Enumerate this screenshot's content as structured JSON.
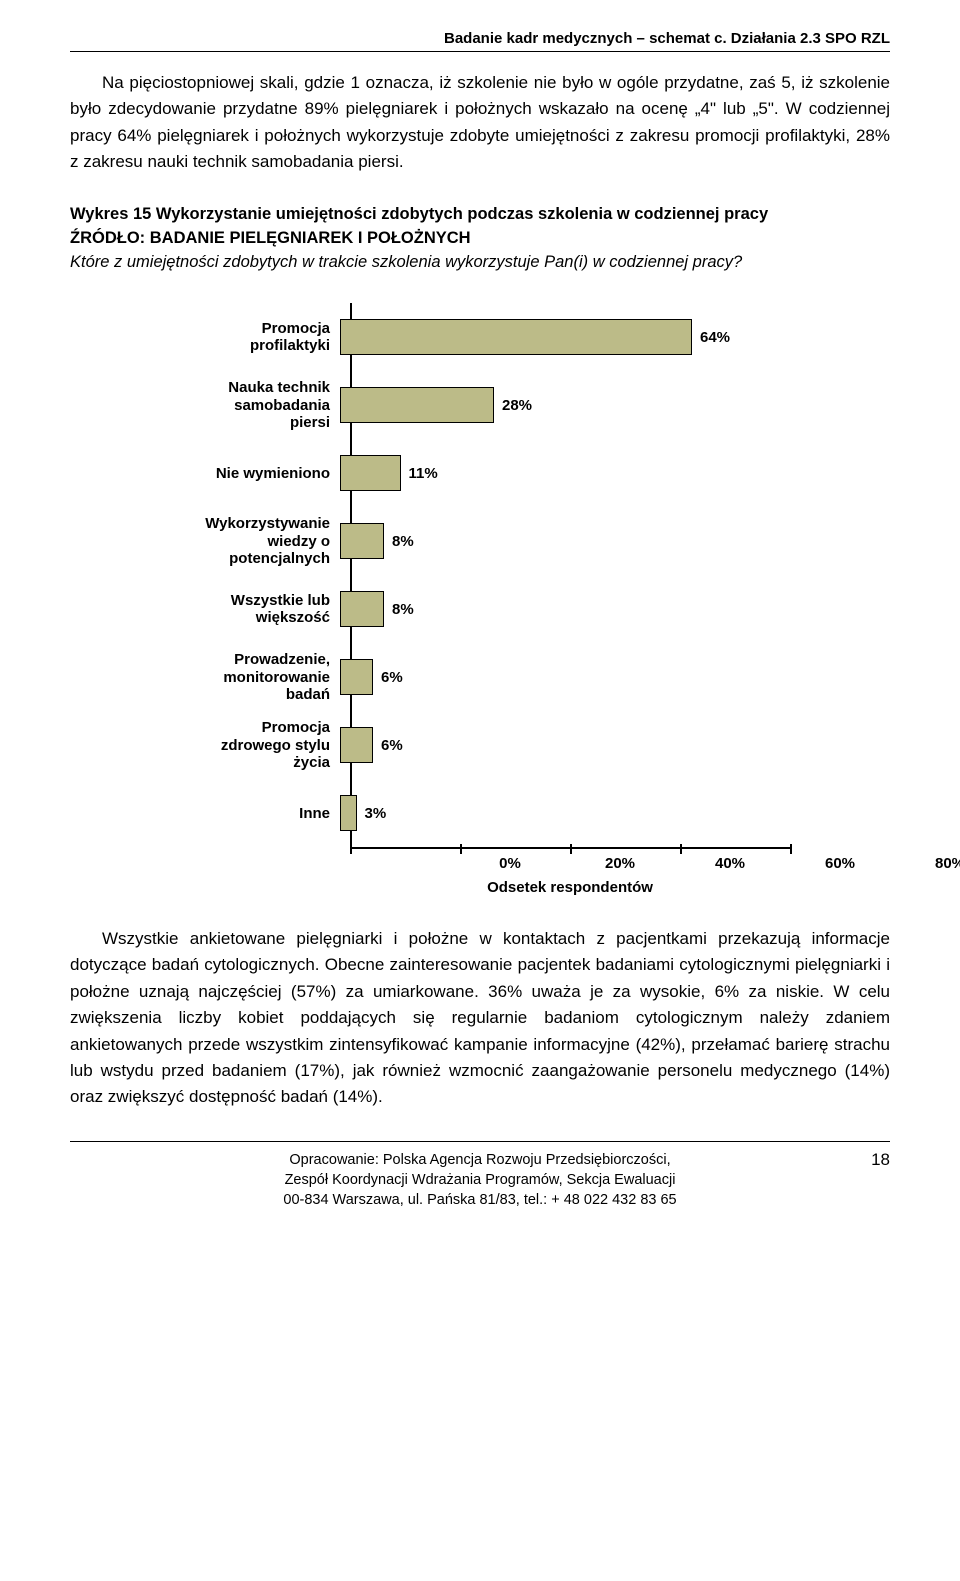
{
  "header": "Badanie kadr medycznych – schemat c. Działania 2.3 SPO RZL",
  "para1": "Na pięciostopniowej skali, gdzie 1 oznacza, iż szkolenie nie było w ogóle przydatne, zaś 5, iż szkolenie było zdecydowanie przydatne 89% pielęgniarek i położnych wskazało na ocenę „4\" lub „5\". W codziennej pracy 64% pielęgniarek i położnych wykorzystuje zdobyte umiejętności z zakresu promocji profilaktyki, 28% z zakresu nauki technik samobadania piersi.",
  "chart": {
    "type": "bar",
    "title": "Wykres 15 Wykorzystanie umiejętności zdobytych podczas szkolenia w codziennej pracy",
    "source": "ŹRÓDŁO: BADANIE PIELĘGNIAREK I POŁOŻNYCH",
    "question": "Które z umiejętności zdobytych w trakcie szkolenia wykorzystuje Pan(i) w codziennej pracy?",
    "bar_fill": "#bcbb88",
    "bar_border": "#000000",
    "value_fontsize": 15,
    "label_fontsize": 15,
    "xmax": 80,
    "xtick_step": 20,
    "xlabel": "Odsetek respondentów",
    "xticks": [
      "0%",
      "20%",
      "40%",
      "60%",
      "80%"
    ],
    "items": [
      {
        "label": "Promocja profilaktyki",
        "value": 64,
        "display": "64%"
      },
      {
        "label": "Nauka technik samobadania piersi",
        "value": 28,
        "display": "28%"
      },
      {
        "label": "Nie wymieniono",
        "value": 11,
        "display": "11%"
      },
      {
        "label": "Wykorzystywanie wiedzy o potencjalnych",
        "value": 8,
        "display": "8%"
      },
      {
        "label": "Wszystkie lub większość",
        "value": 8,
        "display": "8%"
      },
      {
        "label": "Prowadzenie, monitorowanie badań",
        "value": 6,
        "display": "6%"
      },
      {
        "label": "Promocja zdrowego stylu życia",
        "value": 6,
        "display": "6%"
      },
      {
        "label": "Inne",
        "value": 3,
        "display": "3%"
      }
    ]
  },
  "para2": "Wszystkie ankietowane pielęgniarki i położne w kontaktach z pacjentkami przekazują informacje dotyczące badań cytologicznych. Obecne zainteresowanie pacjentek badaniami cytologicznymi pielęgniarki i położne uznają najczęściej (57%) za umiarkowane. 36% uważa je za wysokie, 6% za niskie. W celu zwiększenia liczby kobiet poddających się regularnie badaniom cytologicznym należy zdaniem ankietowanych przede wszystkim zintensyfikować kampanie informacyjne (42%), przełamać barierę strachu lub wstydu przed badaniem (17%), jak również wzmocnić zaangażowanie personelu medycznego (14%) oraz zwiększyć dostępność badań (14%).",
  "footer": {
    "line1": "Opracowanie: Polska Agencja Rozwoju Przedsiębiorczości,",
    "line2": "Zespół Koordynacji Wdrażania Programów, Sekcja Ewaluacji",
    "line3": "00-834 Warszawa, ul. Pańska 81/83, tel.: + 48 022 432 83 65"
  },
  "pagenum": "18"
}
